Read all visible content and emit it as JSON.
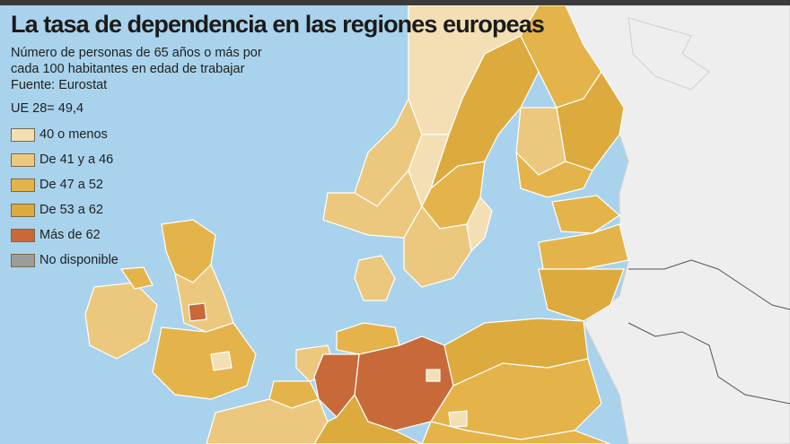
{
  "title": "La tasa de dependencia en las regiones europeas",
  "subtitle_lines": [
    "Número de personas de 65 años o más por",
    "cada 100 habitantes en edad de trabajar",
    "Fuente: Eurostat"
  ],
  "eu_average": "UE 28= 49,4",
  "legend": [
    {
      "label": "40 o menos",
      "color": "#f3dfb3"
    },
    {
      "label": "De 41 y a 46",
      "color": "#ecc87e"
    },
    {
      "label": "De 47 a 52",
      "color": "#e4b44a"
    },
    {
      "label": "De 53 a 62",
      "color": "#ddaa3e"
    },
    {
      "label": "Más de 62",
      "color": "#c8693a"
    },
    {
      "label": "No disponible",
      "color": "#9c9c9c"
    }
  ],
  "colors": {
    "sea": "#a9d3ec",
    "non_eu_land": "#eeeeee",
    "border": "#ffffff",
    "title_bar": "#3a3a3a"
  }
}
